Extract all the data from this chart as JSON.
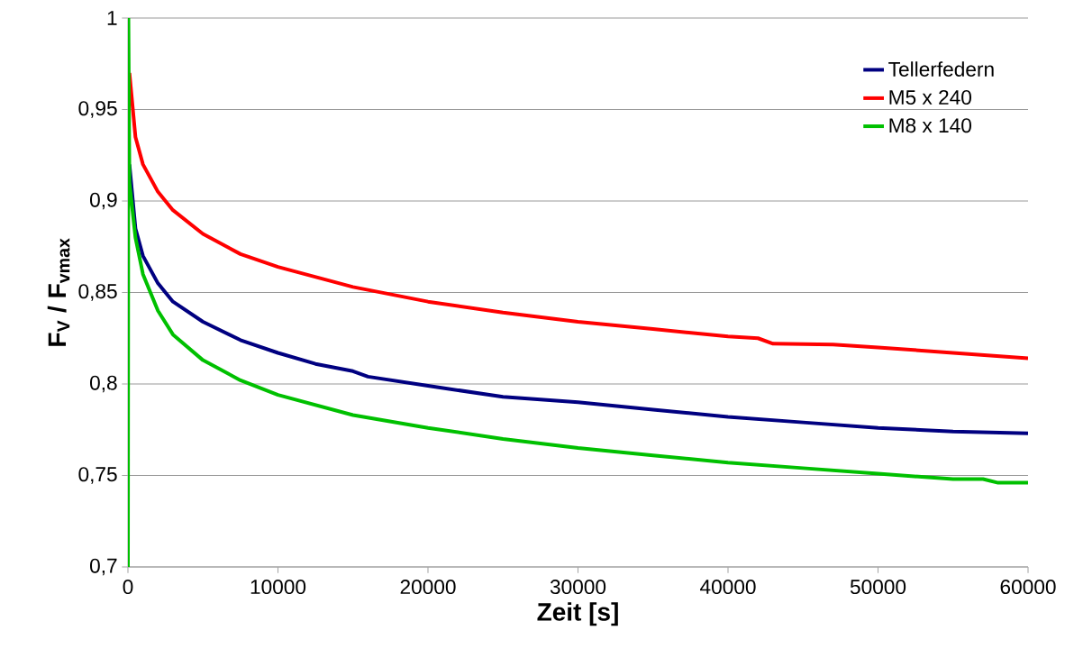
{
  "chart_data": {
    "type": "line",
    "xlabel": "Zeit [s]",
    "ylabel": "F$_{V}$ / F$_{vmax}$",
    "xlim": [
      0,
      60000
    ],
    "ylim": [
      0.7,
      1
    ],
    "xticks": [
      0,
      10000,
      20000,
      30000,
      40000,
      50000,
      60000
    ],
    "yticks": [
      {
        "value": 0.7,
        "label": "0,7"
      },
      {
        "value": 0.75,
        "label": "0,75"
      },
      {
        "value": 0.8,
        "label": "0,8"
      },
      {
        "value": 0.85,
        "label": "0,85"
      },
      {
        "value": 0.9,
        "label": "0,9"
      },
      {
        "value": 0.95,
        "label": "0,95"
      },
      {
        "value": 1,
        "label": "1"
      }
    ],
    "grid": "y",
    "legend": "top right",
    "marker": "none",
    "line_style": "solid",
    "series": [
      {
        "name": "Tellerfedern",
        "color": "#000080",
        "x": [
          100,
          500,
          1000,
          2000,
          3000,
          5000,
          7500,
          10000,
          12500,
          15000,
          16000,
          20000,
          25000,
          30000,
          35000,
          40000,
          45000,
          50000,
          55000,
          60000
        ],
        "values": [
          0.92,
          0.885,
          0.87,
          0.855,
          0.845,
          0.834,
          0.824,
          0.817,
          0.811,
          0.807,
          0.804,
          0.799,
          0.793,
          0.79,
          0.786,
          0.782,
          0.779,
          0.776,
          0.774,
          0.773
        ]
      },
      {
        "name": "M5 x 240",
        "color": "#ff0000",
        "x": [
          100,
          500,
          1000,
          2000,
          3000,
          5000,
          7500,
          10000,
          15000,
          20000,
          25000,
          30000,
          35000,
          40000,
          42000,
          43000,
          47000,
          50000,
          55000,
          60000
        ],
        "values": [
          0.97,
          0.935,
          0.92,
          0.905,
          0.895,
          0.882,
          0.871,
          0.864,
          0.853,
          0.845,
          0.839,
          0.834,
          0.83,
          0.826,
          0.825,
          0.822,
          0.8215,
          0.82,
          0.817,
          0.814
        ]
      },
      {
        "name": "M8 x 140",
        "color": "#00c000",
        "x": [
          0,
          30,
          100,
          500,
          1000,
          2000,
          3000,
          5000,
          7500,
          10000,
          15000,
          20000,
          25000,
          30000,
          35000,
          40000,
          45000,
          50000,
          55000,
          57000,
          58000,
          60000
        ],
        "values": [
          0.7,
          1.0,
          0.91,
          0.88,
          0.86,
          0.84,
          0.827,
          0.813,
          0.802,
          0.794,
          0.783,
          0.776,
          0.77,
          0.765,
          0.761,
          0.757,
          0.754,
          0.751,
          0.748,
          0.748,
          0.746,
          0.746
        ]
      }
    ]
  }
}
